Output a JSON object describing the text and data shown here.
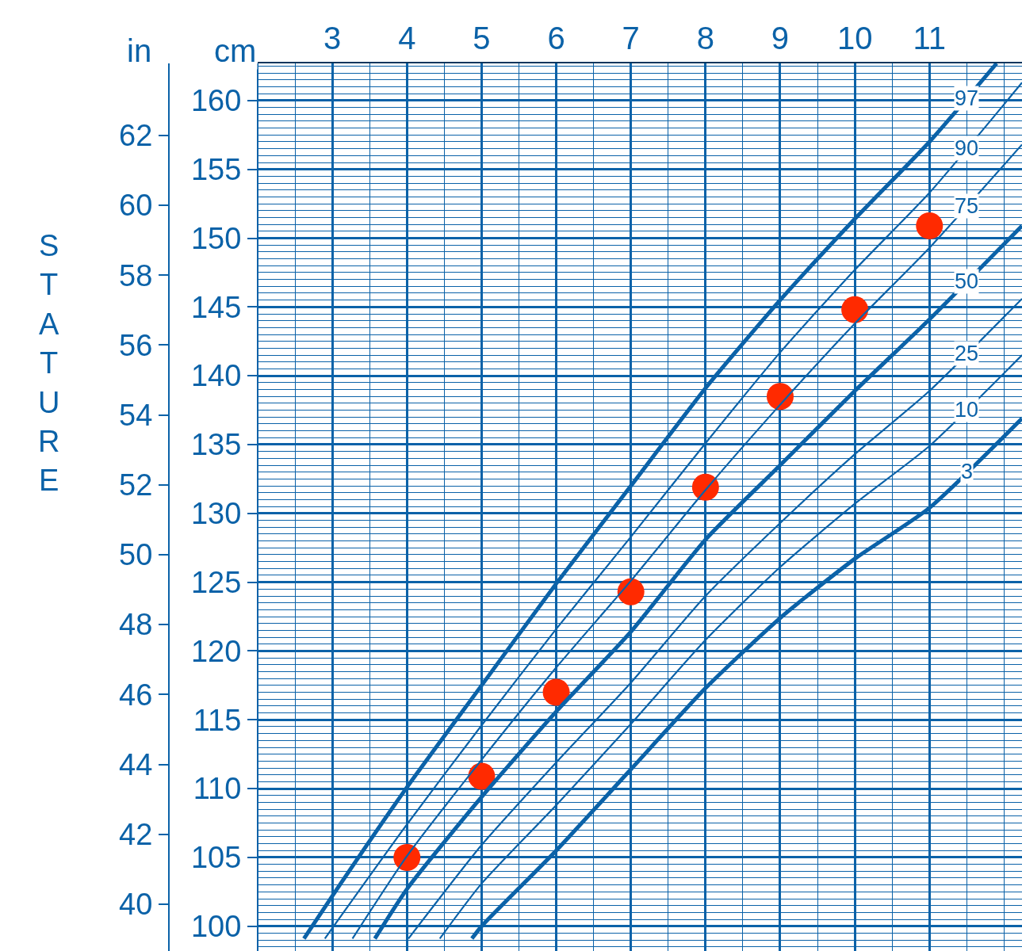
{
  "chart_data": {
    "type": "line",
    "ylabel": "cm",
    "y2label": "in",
    "annotations": [
      "STATURE"
    ],
    "xlim": [
      2.0,
      12.24
    ],
    "xticks": [
      3,
      4,
      5,
      6,
      7,
      8,
      9,
      10,
      11
    ],
    "ylim": [
      98.2,
      162.7
    ],
    "yticks": [
      100,
      105,
      110,
      115,
      120,
      125,
      130,
      135,
      140,
      145,
      150,
      155,
      160
    ],
    "y2lim": [
      38.66,
      64.06
    ],
    "y2ticks": [
      40,
      42,
      44,
      46,
      48,
      50,
      52,
      54,
      56,
      58,
      60,
      62
    ],
    "grid": true,
    "legend": false,
    "series": [
      {
        "name": "97",
        "color": "#0b62a8",
        "x": [
          2.62,
          3,
          4,
          5,
          6,
          7,
          8,
          9,
          10,
          11,
          11.9
        ],
        "values": [
          99.1,
          102.2,
          110.1,
          117.5,
          124.9,
          132.0,
          139.1,
          145.5,
          151.4,
          157.0,
          162.7
        ]
      },
      {
        "name": "90",
        "color": "#0b62a8",
        "x": [
          2.9,
          4,
          5,
          6,
          7,
          8,
          9,
          10,
          11,
          12.24
        ],
        "values": [
          99.1,
          107.4,
          114.6,
          121.6,
          128.3,
          135.1,
          141.7,
          147.7,
          153.3,
          161.3
        ]
      },
      {
        "name": "75",
        "color": "#0b62a8",
        "x": [
          3.27,
          4,
          5,
          6,
          7,
          8,
          9,
          10,
          11,
          12.24
        ],
        "values": [
          99.1,
          105.1,
          112.1,
          118.8,
          125.1,
          131.7,
          137.9,
          143.8,
          149.3,
          156.8
        ]
      },
      {
        "name": "50",
        "color": "#0b62a8",
        "x": [
          3.57,
          4,
          5,
          6,
          7,
          8,
          9,
          10,
          11,
          12.24
        ],
        "values": [
          99.1,
          102.7,
          109.4,
          115.6,
          121.4,
          128.1,
          133.5,
          138.9,
          144.1,
          150.9
        ]
      },
      {
        "name": "25",
        "color": "#0b62a8",
        "x": [
          4.02,
          5,
          6,
          7,
          8,
          9,
          10,
          11,
          12.24
        ],
        "values": [
          99.1,
          105.9,
          111.9,
          117.7,
          124.0,
          129.3,
          134.3,
          138.9,
          145.6
        ]
      },
      {
        "name": "10",
        "color": "#0b62a8",
        "x": [
          4.44,
          5,
          6,
          7,
          8,
          9,
          10,
          11,
          12.24
        ],
        "values": [
          99.1,
          103.1,
          108.8,
          114.7,
          120.8,
          126.1,
          130.7,
          134.9,
          141.5
        ]
      },
      {
        "name": "3",
        "color": "#0b62a8",
        "x": [
          4.87,
          5,
          6,
          7,
          8,
          9,
          10,
          11,
          12.24
        ],
        "values": [
          99.1,
          100.0,
          105.5,
          111.4,
          117.3,
          122.4,
          126.7,
          130.4,
          136.9
        ]
      },
      {
        "type": "scatter",
        "marker": "circle",
        "color": "#ff2a00",
        "x": [
          4,
          5,
          6,
          7,
          8,
          9,
          10,
          11
        ],
        "values": [
          105.0,
          110.9,
          117.0,
          124.3,
          131.9,
          138.5,
          144.8,
          150.9
        ]
      }
    ]
  }
}
